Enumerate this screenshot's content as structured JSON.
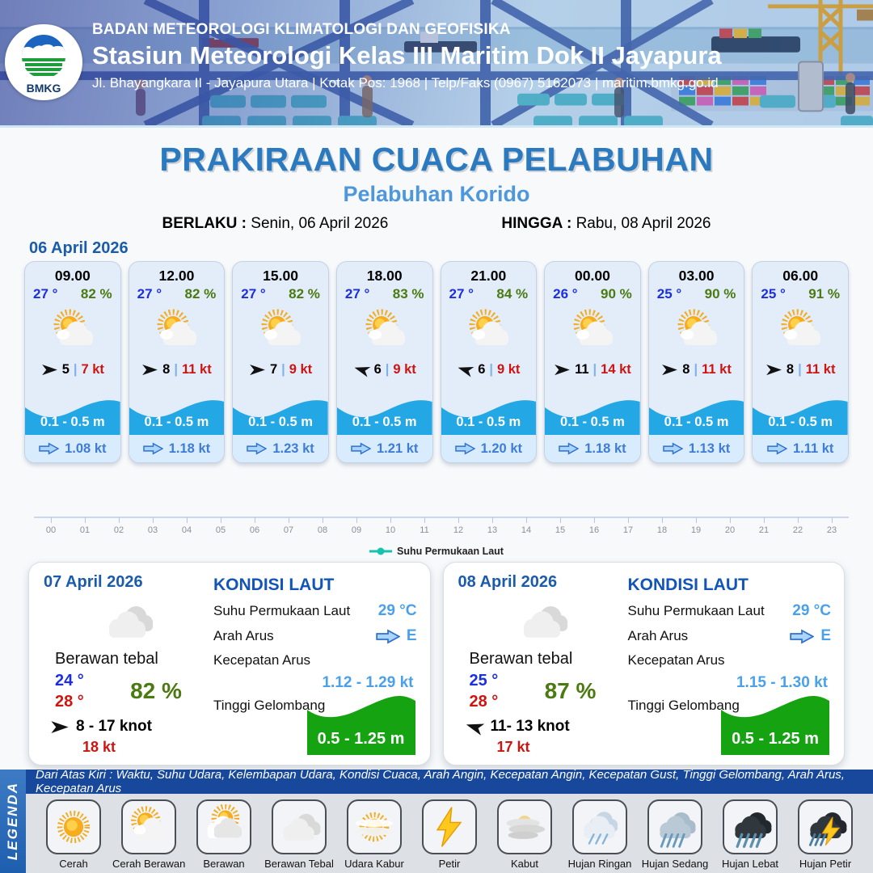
{
  "header": {
    "logo": "BMKG",
    "agency": "BADAN METEOROLOGI KLIMATOLOGI DAN GEOFISIKA",
    "station": "Stasiun Meteorologi Kelas III Maritim Dok II Jayapura",
    "address": "Jl. Bhayangkara II - Jayapura Utara | Kotak Pos: 1968 | Telp/Faks (0967) 5162073 | maritim.bmkg.go.id"
  },
  "title": {
    "main": "PRAKIRAAN CUACA PELABUHAN",
    "port": "Pelabuhan Korido",
    "berlaku_label": "BERLAKU :",
    "berlaku_value": "Senin, 06 April 2026",
    "hingga_label": "HINGGA :",
    "hingga_value": "Rabu, 08 April 2026"
  },
  "forecast_day1": {
    "date": "06 April 2026",
    "cards": [
      {
        "time": "09.00",
        "temp": "27 °",
        "humidity": "82 %",
        "weather_icon": "cerah-berawan",
        "wind_arrow": "right",
        "wind_speed": "5",
        "gust": "7 kt",
        "wave": "0.1 - 0.5 m",
        "current": "1.08 kt"
      },
      {
        "time": "12.00",
        "temp": "27 °",
        "humidity": "82 %",
        "weather_icon": "cerah-berawan",
        "wind_arrow": "right",
        "wind_speed": "8",
        "gust": "11 kt",
        "wave": "0.1 - 0.5 m",
        "current": "1.18 kt"
      },
      {
        "time": "15.00",
        "temp": "27 °",
        "humidity": "82 %",
        "weather_icon": "cerah-berawan",
        "wind_arrow": "right",
        "wind_speed": "7",
        "gust": "9 kt",
        "wave": "0.1 - 0.5 m",
        "current": "1.23 kt"
      },
      {
        "time": "18.00",
        "temp": "27 °",
        "humidity": "83 %",
        "weather_icon": "cerah-berawan",
        "wind_arrow": "left",
        "wind_speed": "6",
        "gust": "9 kt",
        "wave": "0.1 - 0.5 m",
        "current": "1.21 kt"
      },
      {
        "time": "21.00",
        "temp": "27 °",
        "humidity": "84 %",
        "weather_icon": "cerah-berawan",
        "wind_arrow": "left",
        "wind_speed": "6",
        "gust": "9 kt",
        "wave": "0.1 - 0.5 m",
        "current": "1.20 kt"
      },
      {
        "time": "00.00",
        "temp": "26 °",
        "humidity": "90 %",
        "weather_icon": "cerah-berawan",
        "wind_arrow": "right",
        "wind_speed": "11",
        "gust": "14 kt",
        "wave": "0.1 - 0.5 m",
        "current": "1.18 kt"
      },
      {
        "time": "03.00",
        "temp": "25 °",
        "humidity": "90 %",
        "weather_icon": "cerah-berawan",
        "wind_arrow": "right",
        "wind_speed": "8",
        "gust": "11 kt",
        "wave": "0.1 - 0.5 m",
        "current": "1.13 kt"
      },
      {
        "time": "06.00",
        "temp": "25 °",
        "humidity": "91 %",
        "weather_icon": "cerah-berawan",
        "wind_arrow": "right",
        "wind_speed": "8",
        "gust": "11 kt",
        "wave": "0.1 - 0.5 m",
        "current": "1.11 kt"
      }
    ]
  },
  "chart": {
    "hours": [
      "00",
      "01",
      "02",
      "03",
      "04",
      "05",
      "06",
      "07",
      "08",
      "09",
      "10",
      "11",
      "12",
      "13",
      "14",
      "15",
      "16",
      "17",
      "18",
      "19",
      "20",
      "21",
      "22",
      "23"
    ],
    "legend": "Suhu Permukaan Laut",
    "legend_color": "#17c3ae"
  },
  "day_panels": [
    {
      "date": "07 April 2026",
      "condition": "Berawan tebal",
      "weather_icon": "berawan-tebal",
      "temp_min": "24 °",
      "temp_max": "28 °",
      "humidity": "82 %",
      "wind_arrow": "right",
      "wind_range": "8  - 17 knot",
      "gust": "18 kt",
      "sea_title": "KONDISI LAUT",
      "sst_label": "Suhu Permukaan Laut",
      "sst": "29 °C",
      "dir_label": "Arah Arus",
      "dir": "E",
      "speed_label": "Kecepatan Arus",
      "speed": "1.12 -  1.29 kt",
      "wave_label": "Tinggi Gelombang",
      "wave": "0.5 - 1.25 m"
    },
    {
      "date": "08 April 2026",
      "condition": "Berawan tebal",
      "weather_icon": "berawan-tebal",
      "temp_min": "25 °",
      "temp_max": "28 °",
      "humidity": "87 %",
      "wind_arrow": "left",
      "wind_range": "11- 13 knot",
      "gust": "17 kt",
      "sea_title": "KONDISI LAUT",
      "sst_label": "Suhu Permukaan Laut",
      "sst": "29 °C",
      "dir_label": "Arah Arus",
      "dir": "E",
      "speed_label": "Kecepatan Arus",
      "speed": "1.15  - 1.30 kt",
      "wave_label": "Tinggi Gelombang",
      "wave": "0.5 - 1.25 m"
    }
  ],
  "legend_bar": {
    "sidebar": "LEGENDA",
    "caption": "Dari Atas Kiri : Waktu, Suhu Udara, Kelembapan Udara, Kondisi Cuaca, Arah Angin, Kecepatan Angin, Kecepatan Gust, Tinggi Gelombang, Arah Arus, Kecepatan Arus",
    "items": [
      {
        "label": "Cerah",
        "icon": "cerah"
      },
      {
        "label": "Cerah Berawan",
        "icon": "cerah-berawan"
      },
      {
        "label": "Berawan",
        "icon": "berawan"
      },
      {
        "label": "Berawan Tebal",
        "icon": "berawan-tebal"
      },
      {
        "label": "Udara Kabur",
        "icon": "udara-kabur"
      },
      {
        "label": "Petir",
        "icon": "petir"
      },
      {
        "label": "Kabut",
        "icon": "kabut"
      },
      {
        "label": "Hujan Ringan",
        "icon": "hujan-ringan"
      },
      {
        "label": "Hujan Sedang",
        "icon": "hujan-sedang"
      },
      {
        "label": "Hujan Lebat",
        "icon": "hujan-lebat"
      },
      {
        "label": "Hujan Petir",
        "icon": "hujan-petir"
      }
    ]
  },
  "colors": {
    "title_blue": "#2b79be",
    "subtitle_blue": "#4f97db",
    "date_blue": "#1a5cab",
    "temp_blue": "#1b2fe0",
    "humidity_green": "#4a7a10",
    "gust_red": "#cf1410",
    "wave_blue": "#23a8e5",
    "sea_value_blue": "#4aa0ea",
    "wave_green": "#16a312",
    "legend_teal": "#17c3ae"
  }
}
